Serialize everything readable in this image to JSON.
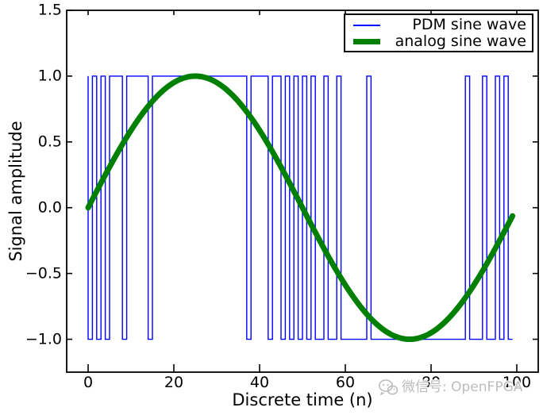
{
  "figure": {
    "background": "#ffffff",
    "frame_color": "#000000"
  },
  "watermark": {
    "icon": "wechat-icon",
    "text": "微信号: OpenFPGA"
  },
  "chart_data": {
    "type": "line",
    "title": "",
    "xlabel": "Discrete time (n)",
    "ylabel": "Signal amplitude",
    "xlim": [
      -5,
      105
    ],
    "ylim": [
      -1.25,
      1.5
    ],
    "xticks": [
      "0",
      "20",
      "40",
      "60",
      "80",
      "100"
    ],
    "xtick_values": [
      0,
      20,
      40,
      60,
      80,
      100
    ],
    "yticks": [
      "−1.0",
      "−0.5",
      "0.0",
      "0.5",
      "1.0",
      "1.5"
    ],
    "ytick_values": [
      -1.0,
      -0.5,
      0.0,
      0.5,
      1.0,
      1.5
    ],
    "grid": false,
    "legend": {
      "position": "upper right",
      "entries": [
        {
          "label": "PDM sine wave",
          "color": "#0000ff",
          "sample_thickness": 2
        },
        {
          "label": "analog sine wave",
          "color": "#008000",
          "sample_thickness": 7
        }
      ]
    },
    "series": [
      {
        "name": "PDM sine wave",
        "color": "#0000ff",
        "linewidth": 1.4,
        "drawstyle": "steps-pre",
        "x_start": 0,
        "x_step": 1,
        "values": [
          1,
          -1,
          1,
          -1,
          1,
          -1,
          1,
          1,
          1,
          -1,
          1,
          1,
          1,
          1,
          1,
          -1,
          1,
          1,
          1,
          1,
          1,
          1,
          1,
          1,
          1,
          1,
          1,
          1,
          1,
          1,
          1,
          1,
          1,
          1,
          1,
          1,
          1,
          1,
          -1,
          1,
          1,
          1,
          1,
          -1,
          1,
          1,
          -1,
          1,
          -1,
          1,
          -1,
          1,
          -1,
          1,
          -1,
          -1,
          1,
          -1,
          -1,
          1,
          -1,
          -1,
          -1,
          -1,
          -1,
          -1,
          1,
          -1,
          -1,
          -1,
          -1,
          -1,
          -1,
          -1,
          -1,
          -1,
          -1,
          -1,
          -1,
          -1,
          -1,
          -1,
          -1,
          -1,
          -1,
          -1,
          -1,
          -1,
          -1,
          1,
          -1,
          -1,
          -1,
          1,
          -1,
          -1,
          1,
          -1,
          1,
          -1
        ]
      },
      {
        "name": "analog sine wave",
        "color": "#008000",
        "linewidth": 7,
        "curve": "sine",
        "amplitude": 1,
        "period": 100,
        "phase": 0,
        "n_min": 0,
        "n_max": 99
      }
    ]
  }
}
